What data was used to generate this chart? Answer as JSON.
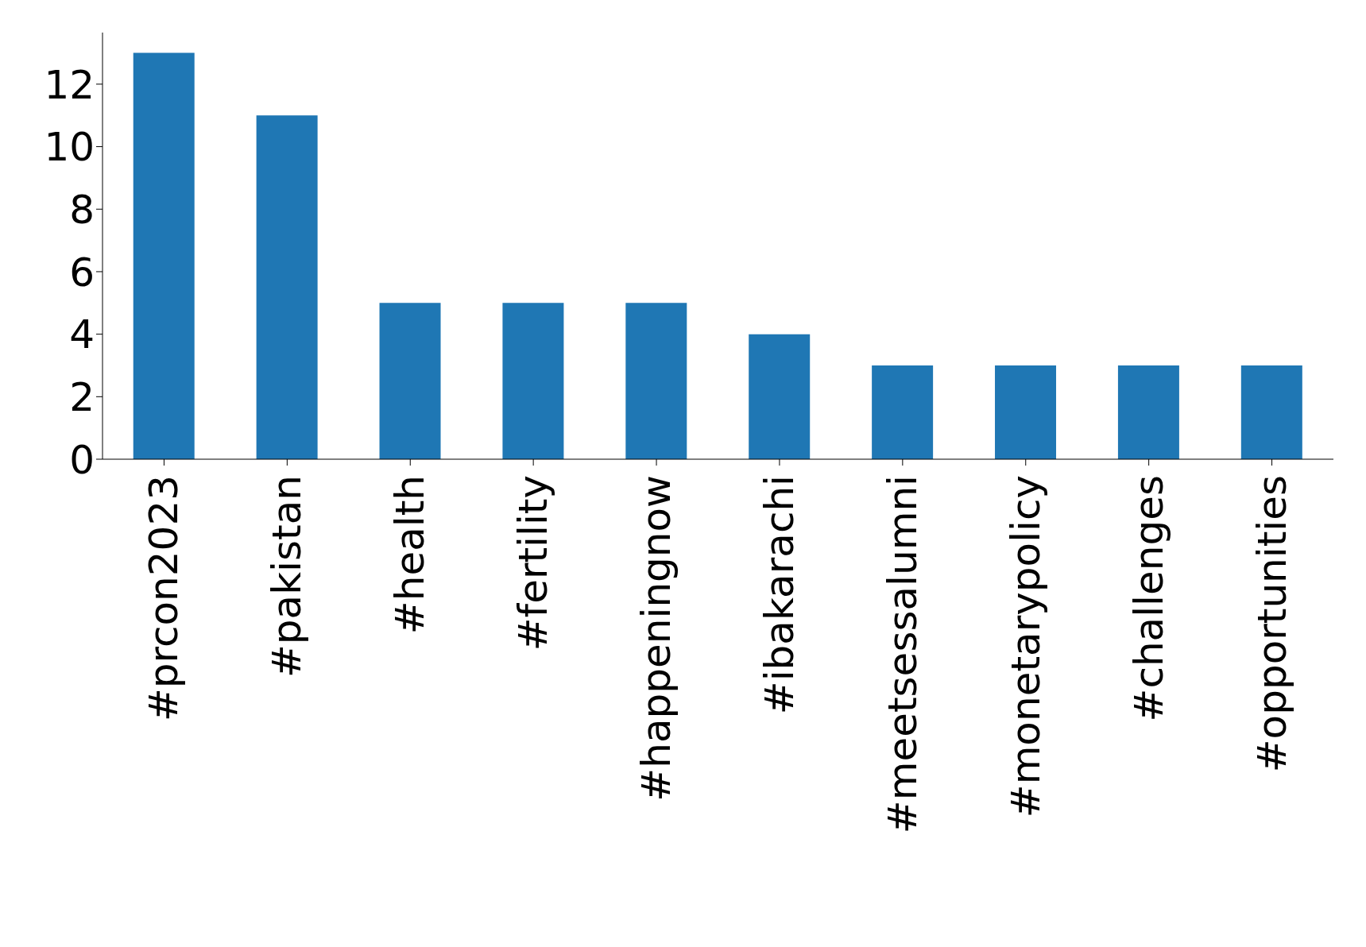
{
  "chart_data": {
    "type": "bar",
    "categories": [
      "#prcon2023",
      "#pakistan",
      "#health",
      "#fertility",
      "#happeningnow",
      "#ibakarachi",
      "#meetsessalumni",
      "#monetarypolicy",
      "#challenges",
      "#opportunities"
    ],
    "values": [
      13,
      11,
      5,
      5,
      5,
      4,
      3,
      3,
      3,
      3
    ],
    "color": "#1f77b4",
    "ylim": [
      0,
      13.65
    ],
    "yticks": [
      0,
      2,
      4,
      6,
      8,
      10,
      12
    ],
    "grid": false,
    "legend": false
  }
}
